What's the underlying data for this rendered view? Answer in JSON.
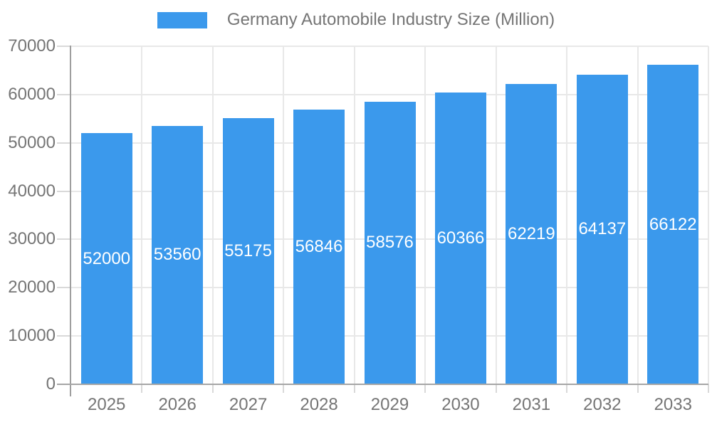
{
  "legend": {
    "label": "Germany Automobile Industry Size (Million)"
  },
  "chart_data": {
    "type": "bar",
    "title": "Germany Automobile Industry Size (Million)",
    "categories": [
      "2025",
      "2026",
      "2027",
      "2028",
      "2029",
      "2030",
      "2031",
      "2032",
      "2033"
    ],
    "values": [
      52000,
      53560,
      55175,
      56846,
      58576,
      60366,
      62219,
      64137,
      66122
    ],
    "xlabel": "",
    "ylabel": "",
    "ylim": [
      0,
      70000
    ],
    "ytick_step": 10000,
    "ytick_labels": [
      "0",
      "10000",
      "20000",
      "30000",
      "40000",
      "50000",
      "60000",
      "70000"
    ],
    "grid": true,
    "legend_position": "top-center",
    "bar_color": "#3b99ec",
    "bar_label_color": "#ffffff",
    "axis_text_color": "#757575",
    "grid_color": "#e8e8e8",
    "tick_color": "#d9d9d9",
    "axis_line_color": "#9e9e9e"
  }
}
